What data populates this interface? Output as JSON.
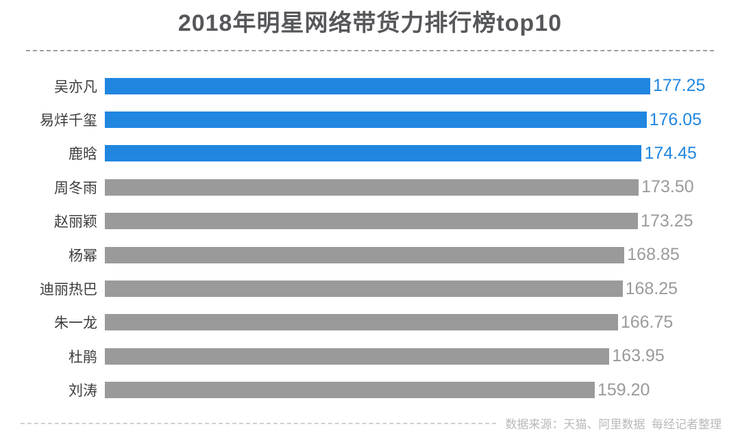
{
  "title": "2018年明星网络带货力排行榜top10",
  "footer": {
    "source_note": "数据来源：天猫、阿里数据  每经记者整理"
  },
  "colors": {
    "highlight_blue": "#2086e0",
    "bar_gray": "#9a9a9a",
    "title_gray": "#56575a",
    "label_dark": "#3c3c3c",
    "footer_gray": "#b9b9b9"
  },
  "chart_data": {
    "type": "bar",
    "orientation": "horizontal",
    "title": "2018年明星网络带货力排行榜top10",
    "xlabel": "",
    "ylabel": "",
    "xlim": [
      0,
      198
    ],
    "grid": false,
    "legend": "none",
    "value_baseline": 0,
    "categories": [
      "吴亦凡",
      "易烊千玺",
      "鹿晗",
      "周冬雨",
      "赵丽颖",
      "杨幂",
      "迪丽热巴",
      "朱一龙",
      "杜鹃",
      "刘涛"
    ],
    "values": [
      177.25,
      176.05,
      174.45,
      173.5,
      173.25,
      168.85,
      168.25,
      166.75,
      163.95,
      159.2
    ],
    "items": [
      {
        "name": "吴亦凡",
        "value": 177.25,
        "value_label": "177.25",
        "highlight": true
      },
      {
        "name": "易烊千玺",
        "value": 176.05,
        "value_label": "176.05",
        "highlight": true
      },
      {
        "name": "鹿晗",
        "value": 174.45,
        "value_label": "174.45",
        "highlight": true
      },
      {
        "name": "周冬雨",
        "value": 173.5,
        "value_label": "173.50",
        "highlight": false
      },
      {
        "name": "赵丽颖",
        "value": 173.25,
        "value_label": "173.25",
        "highlight": false
      },
      {
        "name": "杨幂",
        "value": 168.85,
        "value_label": "168.85",
        "highlight": false
      },
      {
        "name": "迪丽热巴",
        "value": 168.25,
        "value_label": "168.25",
        "highlight": false
      },
      {
        "name": "朱一龙",
        "value": 166.75,
        "value_label": "166.75",
        "highlight": false
      },
      {
        "name": "杜鹃",
        "value": 163.95,
        "value_label": "163.95",
        "highlight": false
      },
      {
        "name": "刘涛",
        "value": 159.2,
        "value_label": "159.20",
        "highlight": false
      }
    ]
  }
}
